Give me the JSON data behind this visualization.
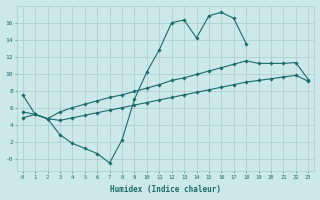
{
  "xlabel": "Humidex (Indice chaleur)",
  "bg_color": "#cde8e8",
  "grid_color": "#a8cccc",
  "line_color": "#1a6b6b",
  "xlim": [
    -0.5,
    23.5
  ],
  "ylim": [
    -1.5,
    18
  ],
  "xticks": [
    0,
    1,
    2,
    3,
    4,
    5,
    6,
    7,
    8,
    9,
    10,
    11,
    12,
    13,
    14,
    15,
    16,
    17,
    18,
    19,
    20,
    21,
    22,
    23
  ],
  "yticks": [
    0,
    2,
    4,
    6,
    8,
    10,
    12,
    14,
    16
  ],
  "ytick_labels": [
    "-0",
    "2",
    "4",
    "6",
    "8",
    "10",
    "12",
    "14",
    "16"
  ],
  "line1_x": [
    0,
    1,
    2,
    3,
    4,
    5,
    6,
    7,
    8,
    9,
    10,
    11,
    12,
    13,
    14,
    15,
    16,
    17,
    18
  ],
  "line1_y": [
    7.5,
    5.2,
    4.7,
    2.8,
    1.8,
    1.2,
    0.6,
    -0.5,
    2.2,
    7.0,
    10.2,
    12.8,
    16.0,
    16.3,
    14.2,
    16.8,
    17.2,
    16.5,
    13.5
  ],
  "line2_x": [
    0,
    1,
    2,
    3,
    4,
    5,
    6,
    7,
    8,
    9,
    10,
    11,
    12,
    13,
    14,
    15,
    16,
    17,
    18,
    19,
    20,
    21,
    22,
    23
  ],
  "line2_y": [
    5.5,
    5.2,
    4.7,
    5.5,
    6.0,
    6.4,
    6.8,
    7.2,
    7.5,
    7.9,
    8.3,
    8.7,
    9.2,
    9.5,
    9.9,
    10.3,
    10.7,
    11.1,
    11.5,
    11.2,
    11.2,
    11.2,
    11.3,
    9.3
  ],
  "line3_x": [
    0,
    1,
    2,
    3,
    4,
    5,
    6,
    7,
    8,
    9,
    10,
    11,
    12,
    13,
    14,
    15,
    16,
    17,
    18,
    19,
    20,
    21,
    22,
    23
  ],
  "line3_y": [
    4.8,
    5.2,
    4.7,
    4.5,
    4.8,
    5.1,
    5.4,
    5.7,
    6.0,
    6.3,
    6.6,
    6.9,
    7.2,
    7.5,
    7.8,
    8.1,
    8.4,
    8.7,
    9.0,
    9.2,
    9.4,
    9.6,
    9.8,
    9.1
  ]
}
